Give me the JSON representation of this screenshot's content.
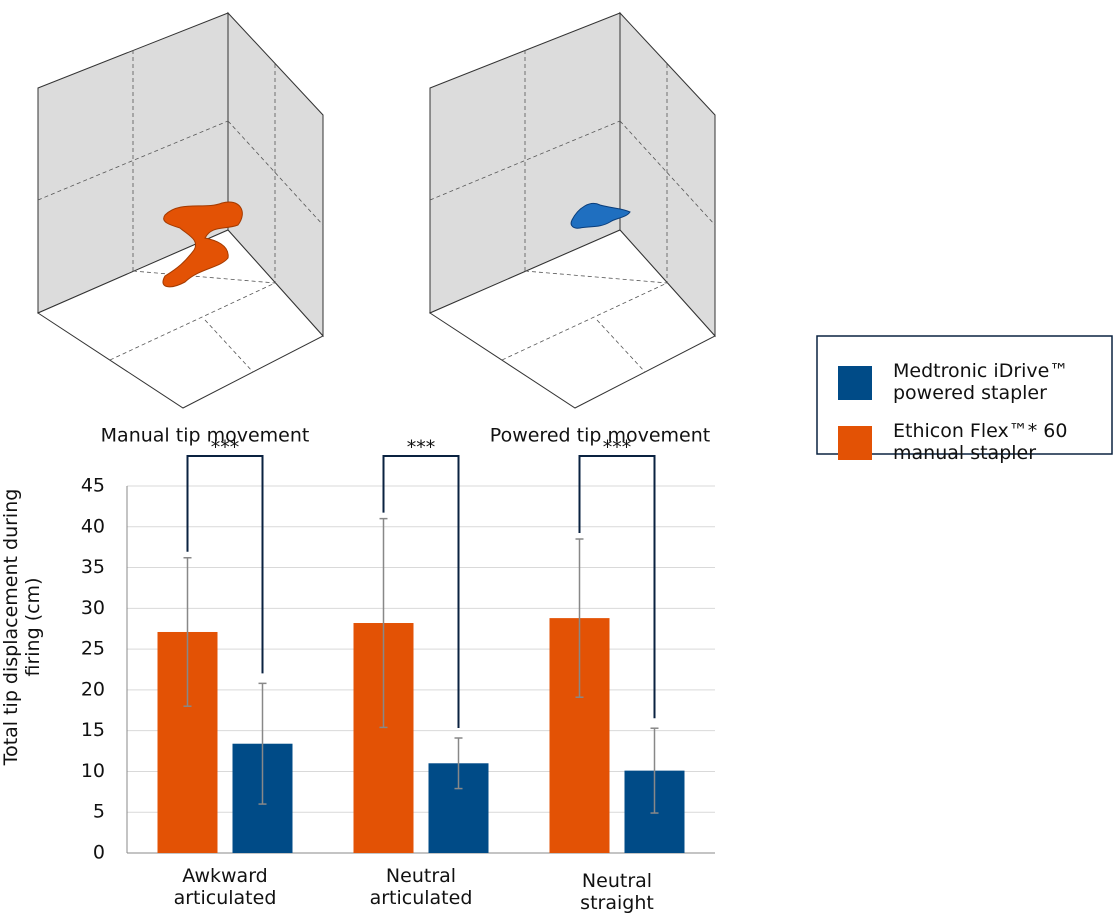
{
  "chart_data": {
    "type": "bar",
    "ylabel": "Total tip displacement during firing (cm)",
    "categories": [
      "Awkward articulated",
      "Neutral articulated",
      "Neutral straight"
    ],
    "series": [
      {
        "name": "Medtronic iDrive™ powered stapler",
        "color": "#004b87",
        "values": [
          13.4,
          11.0,
          10.1
        ],
        "errors": [
          7.4,
          3.1,
          5.2
        ]
      },
      {
        "name": "Ethicon Flex™* 60 manual stapler",
        "color": "#e35205",
        "values": [
          27.1,
          28.2,
          28.8
        ],
        "errors": [
          9.1,
          12.8,
          9.7
        ]
      }
    ],
    "annotations": [
      "***",
      "***",
      "***"
    ],
    "ylim": [
      0,
      45
    ],
    "yticks": [
      0,
      5,
      10,
      15,
      20,
      25,
      30,
      35,
      40,
      45
    ],
    "grid": true,
    "legend": "right"
  },
  "illustrations": {
    "left_caption": "Manual tip movement",
    "right_caption": "Powered tip movement"
  }
}
